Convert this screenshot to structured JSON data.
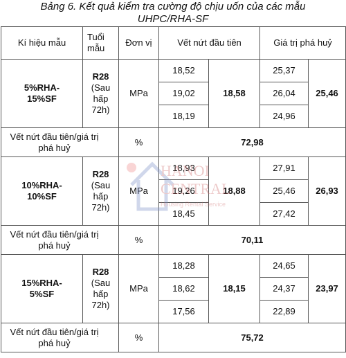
{
  "title": {
    "line1": "Bảng 6. Kết quả kiểm tra cường độ chịu uốn của các mẫu",
    "line2": "UHPC/RHA-SF"
  },
  "table": {
    "header": [
      "Kí hiệu mẫu",
      "Tuổi mẫu",
      "Đơn vị",
      "Vết nứt đầu tiên",
      "Giá trị phá huỷ"
    ],
    "groups": [
      {
        "name": "5%RHA-15%SF",
        "age": "R28",
        "age_note": "(Sau hấp 72h)",
        "unit": "MPa",
        "crack_values": [
          "18,52",
          "19,02",
          "18,19"
        ],
        "crack_avg": "18,58",
        "failure_values": [
          "25,37",
          "26,04",
          "24,96"
        ],
        "failure_avg": "25,46",
        "ratio_label": "Vết nứt đầu tiên/giá trị phá huỷ",
        "ratio_unit": "%",
        "ratio_value": "72,98"
      },
      {
        "name": "10%RHA-10%SF",
        "age": "R28",
        "age_note": "(Sau hấp 72h)",
        "unit": "MPa",
        "crack_values": [
          "18,93",
          "19,26",
          "18,45"
        ],
        "crack_avg": "18,88",
        "failure_values": [
          "27,91",
          "25,46",
          "27,42"
        ],
        "failure_avg": "26,93",
        "ratio_label": "Vết nứt đầu tiên/giá trị phá huỷ",
        "ratio_unit": "%",
        "ratio_value": "70,11"
      },
      {
        "name": "15%RHA-5%SF",
        "age": "R28",
        "age_note": "(Sau hấp 72h)",
        "unit": "MPa",
        "crack_values": [
          "18,28",
          "18,62",
          "17,56"
        ],
        "crack_avg": "18,15",
        "failure_values": [
          "24,65",
          "24,37",
          "22,89"
        ],
        "failure_avg": "23,97",
        "ratio_label": "Vết nứt đầu tiên/giá trị phá huỷ",
        "ratio_unit": "%",
        "ratio_value": "75,72"
      }
    ]
  },
  "watermark": {
    "line1": "HANOI",
    "line2": "CENTRAL",
    "tagline": "Housing Rental Service"
  }
}
